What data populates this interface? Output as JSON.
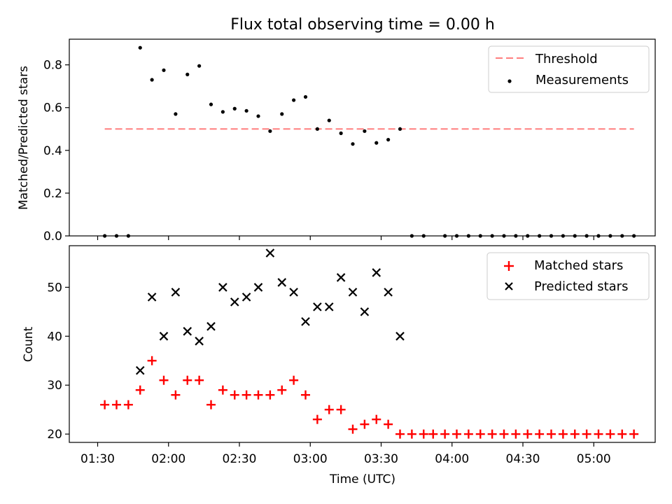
{
  "title": "Flux total observing time = 0.00 h",
  "colors": {
    "threshold": "#ff7f7f",
    "measurement": "#000000",
    "matched": "#ff0000",
    "predicted": "#000000",
    "axis": "#000000",
    "background": "#ffffff"
  },
  "chart_data": [
    {
      "type": "scatter",
      "panel": "top",
      "ylabel": "Matched/Predicted stars",
      "xlabel": "",
      "xlim_minutes": [
        78,
        326
      ],
      "ylim": [
        0,
        0.92
      ],
      "yticks": [
        {
          "value": 0.0,
          "label": "0.0"
        },
        {
          "value": 0.2,
          "label": "0.2"
        },
        {
          "value": 0.4,
          "label": "0.4"
        },
        {
          "value": 0.6,
          "label": "0.6"
        },
        {
          "value": 0.8,
          "label": "0.8"
        }
      ],
      "threshold": {
        "name": "Threshold",
        "value": 0.5,
        "x_start_minutes": 93,
        "x_end_minutes": 317
      },
      "series": [
        {
          "name": "Measurements",
          "marker": "dot",
          "x_minutes": [
            93,
            98,
            103,
            108,
            113,
            118,
            123,
            128,
            133,
            138,
            143,
            148,
            153,
            158,
            163,
            168,
            173,
            178,
            183,
            188,
            193,
            198,
            203,
            208,
            213,
            218,
            223,
            228,
            237,
            242,
            247,
            252,
            257,
            262,
            267,
            272,
            277,
            282,
            287,
            292,
            297,
            302,
            307,
            312,
            317
          ],
          "values": [
            0.0,
            0.0,
            0.0,
            0.88,
            0.73,
            0.775,
            0.57,
            0.755,
            0.795,
            0.615,
            0.58,
            0.595,
            0.585,
            0.56,
            0.49,
            0.57,
            0.635,
            0.65,
            0.5,
            0.54,
            0.48,
            0.43,
            0.49,
            0.435,
            0.45,
            0.5,
            0.0,
            0.0,
            0.0,
            0.0,
            0.0,
            0.0,
            0.0,
            0.0,
            0.0,
            0.0,
            0.0,
            0.0,
            0.0,
            0.0,
            0.0,
            0.0,
            0.0,
            0.0,
            0.0
          ]
        }
      ],
      "legend": {
        "placement": "top-right",
        "entries": [
          "Threshold",
          "Measurements"
        ]
      }
    },
    {
      "type": "scatter",
      "panel": "bottom",
      "ylabel": "Count",
      "xlabel": "Time (UTC)",
      "xlim_minutes": [
        78,
        326
      ],
      "ylim": [
        18.3,
        58.5
      ],
      "yticks": [
        {
          "value": 20,
          "label": "20"
        },
        {
          "value": 30,
          "label": "30"
        },
        {
          "value": 40,
          "label": "40"
        },
        {
          "value": 50,
          "label": "50"
        }
      ],
      "xticks": [
        {
          "value": 90,
          "label": "01:30"
        },
        {
          "value": 120,
          "label": "02:00"
        },
        {
          "value": 150,
          "label": "02:30"
        },
        {
          "value": 180,
          "label": "03:00"
        },
        {
          "value": 210,
          "label": "03:30"
        },
        {
          "value": 240,
          "label": "04:00"
        },
        {
          "value": 270,
          "label": "04:30"
        },
        {
          "value": 300,
          "label": "05:00"
        }
      ],
      "series": [
        {
          "name": "Matched stars",
          "marker": "plus",
          "x_minutes": [
            93,
            98,
            103,
            108,
            113,
            118,
            123,
            128,
            133,
            138,
            143,
            148,
            153,
            158,
            163,
            168,
            173,
            178,
            183,
            188,
            193,
            198,
            203,
            208,
            213,
            218,
            223,
            228,
            232,
            237,
            242,
            247,
            252,
            257,
            262,
            267,
            272,
            277,
            282,
            287,
            292,
            297,
            302,
            307,
            312,
            317
          ],
          "values": [
            26,
            26,
            26,
            29,
            35,
            31,
            28,
            31,
            31,
            26,
            29,
            28,
            28,
            28,
            28,
            29,
            31,
            28,
            23,
            25,
            25,
            21,
            22,
            23,
            22,
            20,
            20,
            20,
            20,
            20,
            20,
            20,
            20,
            20,
            20,
            20,
            20,
            20,
            20,
            20,
            20,
            20,
            20,
            20,
            20,
            20
          ]
        },
        {
          "name": "Predicted stars",
          "marker": "x",
          "x_minutes": [
            108,
            113,
            118,
            123,
            128,
            133,
            138,
            143,
            148,
            153,
            158,
            163,
            168,
            173,
            178,
            183,
            188,
            193,
            198,
            203,
            208,
            213,
            218
          ],
          "values": [
            33,
            48,
            40,
            49,
            41,
            39,
            42,
            50,
            47,
            48,
            50,
            57,
            51,
            49,
            43,
            46,
            46,
            52,
            49,
            45,
            53,
            49,
            40
          ]
        }
      ],
      "legend": {
        "placement": "top-right",
        "entries": [
          "Matched stars",
          "Predicted stars"
        ]
      }
    }
  ]
}
